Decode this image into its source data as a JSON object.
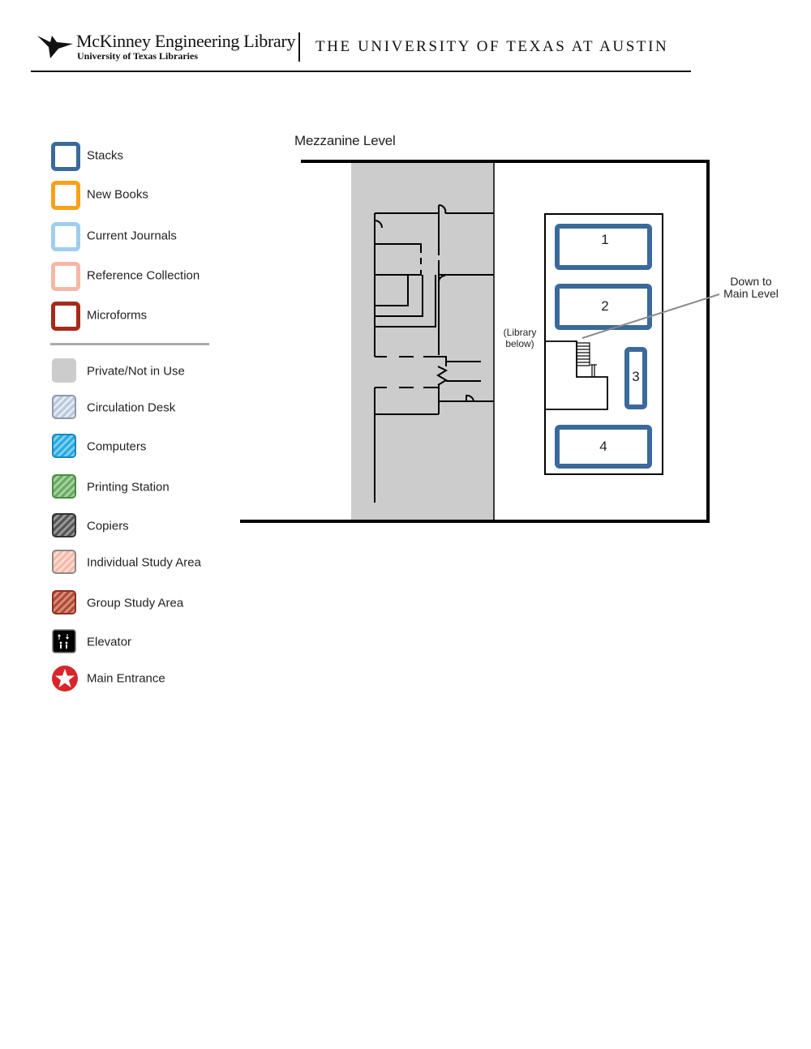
{
  "header": {
    "library_name": "McKinney Engineering Library",
    "library_subtitle": "University of Texas Libraries",
    "university_name": "THE UNIVERSITY OF TEXAS AT AUSTIN"
  },
  "legend": {
    "outline_items": [
      {
        "label": "Stacks",
        "color": "#3a6a9b"
      },
      {
        "label": "New Books",
        "color": "#f7a11a"
      },
      {
        "label": "Current Journals",
        "color": "#9fcdee"
      },
      {
        "label": "Reference Collection",
        "color": "#f5b8a6"
      },
      {
        "label": "Microforms",
        "color": "#a52a1a"
      }
    ],
    "fill_items": [
      {
        "label": "Private/Not in Use",
        "color": "#cccccc",
        "pattern": "solid"
      },
      {
        "label": "Circulation Desk",
        "color": "#b8c8dc",
        "pattern": "hatch"
      },
      {
        "label": "Computers",
        "color": "#29a9e1",
        "pattern": "hatch"
      },
      {
        "label": "Printing Station",
        "color": "#6aab63",
        "pattern": "hatch"
      },
      {
        "label": "Copiers",
        "color": "#555555",
        "pattern": "hatch"
      },
      {
        "label": "Individual Study Area",
        "color": "#f5b8a6",
        "pattern": "hatch"
      },
      {
        "label": "Group Study Area",
        "color": "#b14b34",
        "pattern": "hatch"
      }
    ],
    "elevator": {
      "label": "Elevator",
      "icon": "elevator-icon"
    },
    "entrance": {
      "label": "Main Entrance",
      "icon": "star-icon",
      "color": "#d7262b"
    }
  },
  "map": {
    "title": "Mezzanine Level",
    "stacks": [
      "1",
      "2",
      "3",
      "4"
    ],
    "stairs_callout": "Down to\nMain Level",
    "library_note": "(Library\nbelow)",
    "stack_color": "#3a6a9b",
    "private_color": "#cccccc"
  }
}
